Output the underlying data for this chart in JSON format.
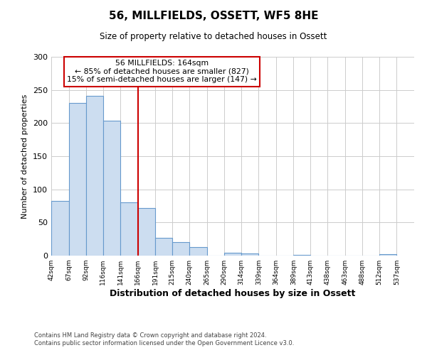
{
  "title": "56, MILLFIELDS, OSSETT, WF5 8HE",
  "subtitle": "Size of property relative to detached houses in Ossett",
  "xlabel": "Distribution of detached houses by size in Ossett",
  "ylabel": "Number of detached properties",
  "bar_edges": [
    42,
    67,
    92,
    116,
    141,
    166,
    191,
    215,
    240,
    265,
    290,
    314,
    339,
    364,
    389,
    413,
    438,
    463,
    488,
    512,
    537
  ],
  "bar_heights": [
    83,
    230,
    241,
    204,
    80,
    72,
    27,
    20,
    13,
    0,
    4,
    3,
    0,
    0,
    1,
    0,
    0,
    0,
    0,
    2
  ],
  "bar_color": "#ccddf0",
  "bar_edge_color": "#6699cc",
  "property_line_x": 166,
  "annotation_title": "56 MILLFIELDS: 164sqm",
  "annotation_line1": "← 85% of detached houses are smaller (827)",
  "annotation_line2": "15% of semi-detached houses are larger (147) →",
  "annotation_box_color": "#ffffff",
  "annotation_box_edge_color": "#cc0000",
  "property_line_color": "#cc0000",
  "ylim": [
    0,
    300
  ],
  "yticks": [
    0,
    50,
    100,
    150,
    200,
    250,
    300
  ],
  "tick_labels": [
    "42sqm",
    "67sqm",
    "92sqm",
    "116sqm",
    "141sqm",
    "166sqm",
    "191sqm",
    "215sqm",
    "240sqm",
    "265sqm",
    "290sqm",
    "314sqm",
    "339sqm",
    "364sqm",
    "389sqm",
    "413sqm",
    "438sqm",
    "463sqm",
    "488sqm",
    "512sqm",
    "537sqm"
  ],
  "footer_line1": "Contains HM Land Registry data © Crown copyright and database right 2024.",
  "footer_line2": "Contains public sector information licensed under the Open Government Licence v3.0.",
  "background_color": "#ffffff",
  "grid_color": "#cccccc"
}
